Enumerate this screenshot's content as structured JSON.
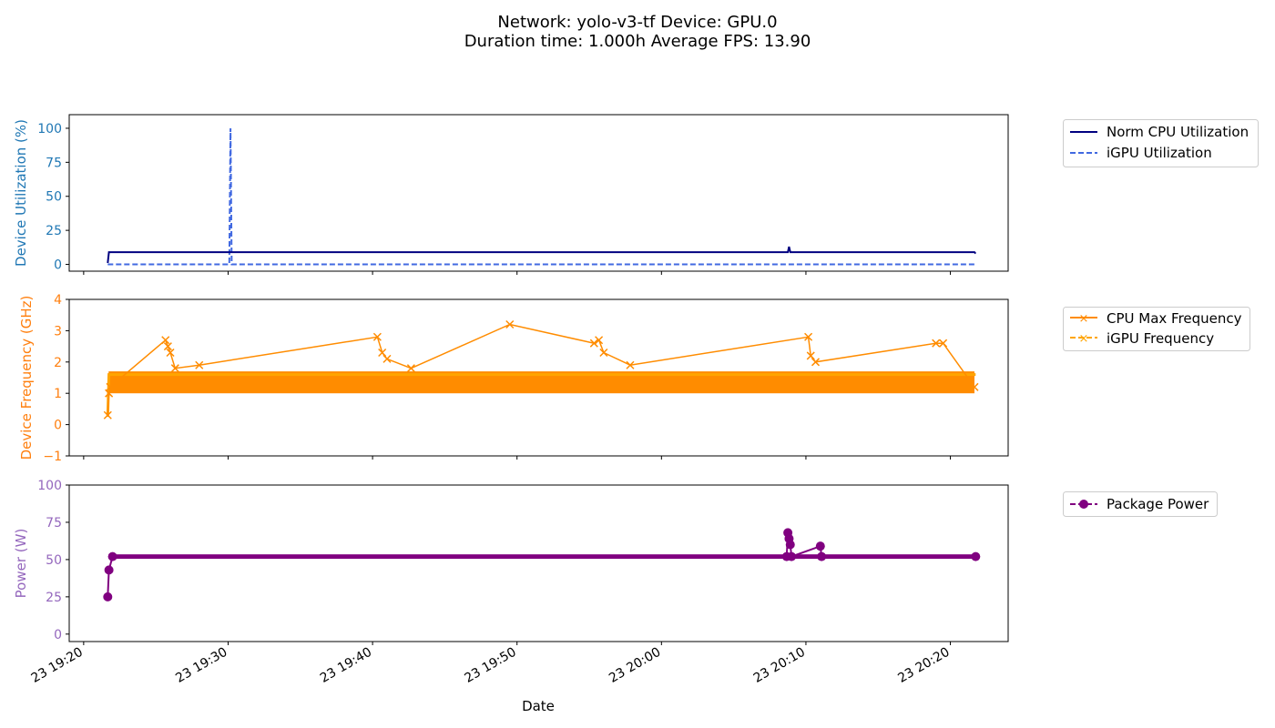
{
  "title_line1": "Network: yolo-v3-tf Device: GPU.0",
  "title_line2": "Duration time: 1.000h Average FPS: 13.90",
  "xlabel": "Date",
  "x_tick_labels": [
    "23 19:20",
    "23 19:30",
    "23 19:40",
    "23 19:50",
    "23 20:00",
    "23 20:10",
    "23 20:20"
  ],
  "colors": {
    "cpu_util": "#000080",
    "igpu_util": "#4169e1",
    "cpu_freq": "#ff8c00",
    "igpu_freq": "#ffa500",
    "power": "#800080",
    "axis1_label": "#1f77b4",
    "axis2_label": "#ff7f0e",
    "axis3_label": "#9467bd"
  },
  "chart_data": [
    {
      "type": "line",
      "ylabel": "Device Utilization (%)",
      "ylim": [
        -5,
        110
      ],
      "yticks": [
        "0",
        "25",
        "50",
        "75",
        "100"
      ],
      "xlim": [
        "19:19:00",
        "20:24:00"
      ],
      "legend_position": "outside-right",
      "series": [
        {
          "name": "Norm CPU Utilization",
          "x": [
            "19:21:40",
            "19:21:45",
            "19:21:50",
            "20:08:45",
            "20:08:50",
            "20:08:55",
            "20:21:40",
            "20:21:45"
          ],
          "values": [
            1,
            9,
            9,
            9,
            13,
            9,
            9,
            8
          ]
        },
        {
          "name": "iGPU Utilization",
          "x": [
            "19:21:40",
            "19:30:05",
            "19:30:10",
            "19:30:15",
            "20:21:45"
          ],
          "values": [
            0,
            0,
            100,
            0,
            0
          ]
        }
      ]
    },
    {
      "type": "line",
      "ylabel": "Device Frequency (GHz)",
      "ylim": [
        -1,
        4
      ],
      "yticks": [
        "−1",
        "0",
        "1",
        "2",
        "3",
        "4"
      ],
      "legend_position": "outside-right",
      "series": [
        {
          "name": "CPU Max Frequency",
          "band_range": [
            1.0,
            1.7
          ],
          "x": [
            "19:21:40",
            "19:21:45",
            "19:21:50",
            "19:25:40",
            "19:25:50",
            "19:26:00",
            "19:26:20",
            "19:28:00",
            "19:40:20",
            "19:40:40",
            "19:41:00",
            "19:42:40",
            "19:49:30",
            "19:55:20",
            "19:55:40",
            "19:56:00",
            "19:57:50",
            "20:10:10",
            "20:10:20",
            "20:10:40",
            "20:19:00",
            "20:19:30",
            "20:21:40"
          ],
          "values": [
            0.3,
            1.0,
            1.2,
            2.7,
            2.5,
            2.3,
            1.8,
            1.9,
            2.8,
            2.3,
            2.1,
            1.8,
            3.2,
            2.6,
            2.7,
            2.3,
            1.9,
            2.8,
            2.2,
            2.0,
            2.6,
            2.6,
            1.2
          ]
        },
        {
          "name": "iGPU Frequency",
          "x": [
            "19:21:40",
            "19:21:45",
            "20:21:45"
          ],
          "values": [
            0.25,
            1.6,
            1.6
          ]
        }
      ]
    },
    {
      "type": "line",
      "ylabel": "Power (W)",
      "ylim": [
        -5,
        100
      ],
      "yticks": [
        "0",
        "25",
        "50",
        "75",
        "100"
      ],
      "legend_position": "outside-right",
      "series": [
        {
          "name": "Package Power",
          "x": [
            "19:21:40",
            "19:21:45",
            "19:22:00",
            "20:08:40",
            "20:08:45",
            "20:08:50",
            "20:08:55",
            "20:09:00",
            "20:11:00",
            "20:11:05",
            "20:21:45"
          ],
          "values": [
            25,
            43,
            52,
            52,
            68,
            64,
            60,
            52,
            59,
            52,
            52
          ],
          "band_range": [
            50.5,
            53.5
          ]
        }
      ]
    }
  ]
}
